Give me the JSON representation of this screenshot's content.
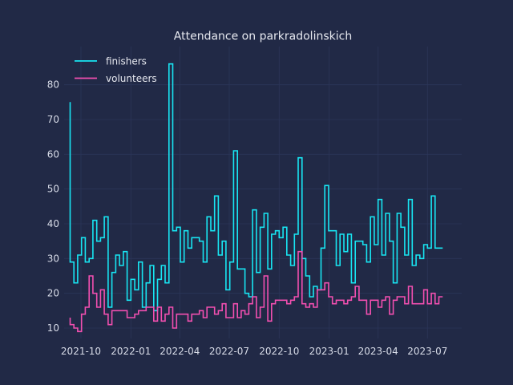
{
  "chart_data": {
    "type": "line",
    "title": "Attendance on parkradolinskich",
    "xlabel": "",
    "ylabel": "",
    "ylim": [
      7,
      91
    ],
    "xlim": [
      "2021-08-31",
      "2023-09-02"
    ],
    "grid": true,
    "legend_position": "top-left",
    "step": true,
    "x_ticks": [
      {
        "date": "2021-10-01",
        "label": "2021-10"
      },
      {
        "date": "2022-01-01",
        "label": "2022-01"
      },
      {
        "date": "2022-04-01",
        "label": "2022-04"
      },
      {
        "date": "2022-07-01",
        "label": "2022-07"
      },
      {
        "date": "2022-10-01",
        "label": "2022-10"
      },
      {
        "date": "2023-01-01",
        "label": "2023-01"
      },
      {
        "date": "2023-04-01",
        "label": "2023-04"
      },
      {
        "date": "2023-07-01",
        "label": "2023-07"
      }
    ],
    "y_ticks": [
      10,
      20,
      30,
      40,
      50,
      60,
      70,
      80
    ],
    "series": [
      {
        "name": "finishers",
        "color": "#18e5f2",
        "points": [
          [
            "2021-09-11",
            75
          ],
          [
            "2021-09-18",
            29
          ],
          [
            "2021-09-25",
            23
          ],
          [
            "2021-10-02",
            31
          ],
          [
            "2021-10-09",
            36
          ],
          [
            "2021-10-16",
            29
          ],
          [
            "2021-10-23",
            30
          ],
          [
            "2021-10-30",
            41
          ],
          [
            "2021-11-06",
            35
          ],
          [
            "2021-11-13",
            36
          ],
          [
            "2021-11-20",
            42
          ],
          [
            "2021-11-27",
            16
          ],
          [
            "2021-12-04",
            26
          ],
          [
            "2021-12-11",
            31
          ],
          [
            "2021-12-18",
            28
          ],
          [
            "2021-12-25",
            32
          ],
          [
            "2022-01-01",
            18
          ],
          [
            "2022-01-08",
            24
          ],
          [
            "2022-01-15",
            21
          ],
          [
            "2022-01-22",
            29
          ],
          [
            "2022-01-29",
            16
          ],
          [
            "2022-02-05",
            23
          ],
          [
            "2022-02-12",
            28
          ],
          [
            "2022-02-19",
            15
          ],
          [
            "2022-02-26",
            24
          ],
          [
            "2022-03-05",
            28
          ],
          [
            "2022-03-12",
            23
          ],
          [
            "2022-03-19",
            86
          ],
          [
            "2022-03-26",
            38
          ],
          [
            "2022-04-02",
            39
          ],
          [
            "2022-04-09",
            29
          ],
          [
            "2022-04-16",
            38
          ],
          [
            "2022-04-23",
            33
          ],
          [
            "2022-04-30",
            36
          ],
          [
            "2022-05-07",
            36
          ],
          [
            "2022-05-14",
            35
          ],
          [
            "2022-05-21",
            29
          ],
          [
            "2022-05-28",
            42
          ],
          [
            "2022-06-04",
            38
          ],
          [
            "2022-06-11",
            48
          ],
          [
            "2022-06-18",
            31
          ],
          [
            "2022-06-25",
            35
          ],
          [
            "2022-07-02",
            21
          ],
          [
            "2022-07-09",
            29
          ],
          [
            "2022-07-16",
            61
          ],
          [
            "2022-07-23",
            27
          ],
          [
            "2022-07-30",
            27
          ],
          [
            "2022-08-06",
            20
          ],
          [
            "2022-08-13",
            19
          ],
          [
            "2022-08-20",
            44
          ],
          [
            "2022-08-27",
            26
          ],
          [
            "2022-09-03",
            39
          ],
          [
            "2022-09-10",
            43
          ],
          [
            "2022-09-17",
            27
          ],
          [
            "2022-09-24",
            37
          ],
          [
            "2022-10-01",
            38
          ],
          [
            "2022-10-08",
            36
          ],
          [
            "2022-10-15",
            39
          ],
          [
            "2022-10-22",
            31
          ],
          [
            "2022-10-29",
            28
          ],
          [
            "2022-11-05",
            37
          ],
          [
            "2022-11-12",
            59
          ],
          [
            "2022-11-19",
            30
          ],
          [
            "2022-11-26",
            25
          ],
          [
            "2022-12-03",
            19
          ],
          [
            "2022-12-10",
            22
          ],
          [
            "2022-12-17",
            21
          ],
          [
            "2022-12-24",
            33
          ],
          [
            "2022-12-31",
            51
          ],
          [
            "2023-01-07",
            38
          ],
          [
            "2023-01-14",
            38
          ],
          [
            "2023-01-21",
            28
          ],
          [
            "2023-01-28",
            37
          ],
          [
            "2023-02-04",
            32
          ],
          [
            "2023-02-11",
            37
          ],
          [
            "2023-02-18",
            23
          ],
          [
            "2023-02-25",
            35
          ],
          [
            "2023-03-04",
            35
          ],
          [
            "2023-03-11",
            34
          ],
          [
            "2023-03-18",
            29
          ],
          [
            "2023-03-25",
            42
          ],
          [
            "2023-04-01",
            34
          ],
          [
            "2023-04-08",
            47
          ],
          [
            "2023-04-15",
            31
          ],
          [
            "2023-04-22",
            43
          ],
          [
            "2023-04-29",
            35
          ],
          [
            "2023-05-06",
            23
          ],
          [
            "2023-05-13",
            43
          ],
          [
            "2023-05-20",
            39
          ],
          [
            "2023-05-27",
            31
          ],
          [
            "2023-06-03",
            47
          ],
          [
            "2023-06-10",
            28
          ],
          [
            "2023-06-17",
            31
          ],
          [
            "2023-06-24",
            30
          ],
          [
            "2023-07-01",
            34
          ],
          [
            "2023-07-08",
            33
          ],
          [
            "2023-07-15",
            48
          ],
          [
            "2023-07-22",
            33
          ],
          [
            "2023-07-29",
            33
          ]
        ]
      },
      {
        "name": "volunteers",
        "color": "#f24fb0",
        "points": [
          [
            "2021-09-11",
            13
          ],
          [
            "2021-09-18",
            11
          ],
          [
            "2021-09-25",
            10
          ],
          [
            "2021-10-02",
            9
          ],
          [
            "2021-10-09",
            14
          ],
          [
            "2021-10-16",
            16
          ],
          [
            "2021-10-23",
            25
          ],
          [
            "2021-10-30",
            20
          ],
          [
            "2021-11-06",
            16
          ],
          [
            "2021-11-13",
            21
          ],
          [
            "2021-11-20",
            14
          ],
          [
            "2021-11-27",
            11
          ],
          [
            "2021-12-04",
            15
          ],
          [
            "2021-12-11",
            15
          ],
          [
            "2021-12-18",
            15
          ],
          [
            "2021-12-25",
            15
          ],
          [
            "2022-01-01",
            13
          ],
          [
            "2022-01-08",
            13
          ],
          [
            "2022-01-15",
            14
          ],
          [
            "2022-01-22",
            15
          ],
          [
            "2022-01-29",
            15
          ],
          [
            "2022-02-05",
            16
          ],
          [
            "2022-02-12",
            16
          ],
          [
            "2022-02-19",
            12
          ],
          [
            "2022-02-26",
            16
          ],
          [
            "2022-03-05",
            12
          ],
          [
            "2022-03-12",
            14
          ],
          [
            "2022-03-19",
            16
          ],
          [
            "2022-03-26",
            10
          ],
          [
            "2022-04-02",
            14
          ],
          [
            "2022-04-09",
            14
          ],
          [
            "2022-04-16",
            14
          ],
          [
            "2022-04-23",
            12
          ],
          [
            "2022-04-30",
            14
          ],
          [
            "2022-05-07",
            14
          ],
          [
            "2022-05-14",
            15
          ],
          [
            "2022-05-21",
            13
          ],
          [
            "2022-05-28",
            16
          ],
          [
            "2022-06-04",
            16
          ],
          [
            "2022-06-11",
            14
          ],
          [
            "2022-06-18",
            15
          ],
          [
            "2022-06-25",
            17
          ],
          [
            "2022-07-02",
            13
          ],
          [
            "2022-07-09",
            13
          ],
          [
            "2022-07-16",
            17
          ],
          [
            "2022-07-23",
            13
          ],
          [
            "2022-07-30",
            15
          ],
          [
            "2022-08-06",
            14
          ],
          [
            "2022-08-13",
            17
          ],
          [
            "2022-08-20",
            19
          ],
          [
            "2022-08-27",
            13
          ],
          [
            "2022-09-03",
            16
          ],
          [
            "2022-09-10",
            25
          ],
          [
            "2022-09-17",
            12
          ],
          [
            "2022-09-24",
            17
          ],
          [
            "2022-10-01",
            18
          ],
          [
            "2022-10-08",
            18
          ],
          [
            "2022-10-15",
            18
          ],
          [
            "2022-10-22",
            17
          ],
          [
            "2022-10-29",
            18
          ],
          [
            "2022-11-05",
            19
          ],
          [
            "2022-11-12",
            32
          ],
          [
            "2022-11-19",
            17
          ],
          [
            "2022-11-26",
            16
          ],
          [
            "2022-12-03",
            17
          ],
          [
            "2022-12-10",
            16
          ],
          [
            "2022-12-17",
            21
          ],
          [
            "2022-12-24",
            21
          ],
          [
            "2022-12-31",
            23
          ],
          [
            "2023-01-07",
            19
          ],
          [
            "2023-01-14",
            17
          ],
          [
            "2023-01-21",
            18
          ],
          [
            "2023-01-28",
            18
          ],
          [
            "2023-02-04",
            17
          ],
          [
            "2023-02-11",
            18
          ],
          [
            "2023-02-18",
            19
          ],
          [
            "2023-02-25",
            22
          ],
          [
            "2023-03-04",
            18
          ],
          [
            "2023-03-11",
            18
          ],
          [
            "2023-03-18",
            14
          ],
          [
            "2023-03-25",
            18
          ],
          [
            "2023-04-01",
            18
          ],
          [
            "2023-04-08",
            16
          ],
          [
            "2023-04-15",
            18
          ],
          [
            "2023-04-22",
            19
          ],
          [
            "2023-04-29",
            14
          ],
          [
            "2023-05-06",
            18
          ],
          [
            "2023-05-13",
            19
          ],
          [
            "2023-05-20",
            19
          ],
          [
            "2023-05-27",
            17
          ],
          [
            "2023-06-03",
            22
          ],
          [
            "2023-06-10",
            17
          ],
          [
            "2023-06-17",
            17
          ],
          [
            "2023-06-24",
            17
          ],
          [
            "2023-07-01",
            21
          ],
          [
            "2023-07-08",
            17
          ],
          [
            "2023-07-15",
            20
          ],
          [
            "2023-07-22",
            17
          ],
          [
            "2023-07-29",
            19
          ]
        ]
      }
    ]
  }
}
